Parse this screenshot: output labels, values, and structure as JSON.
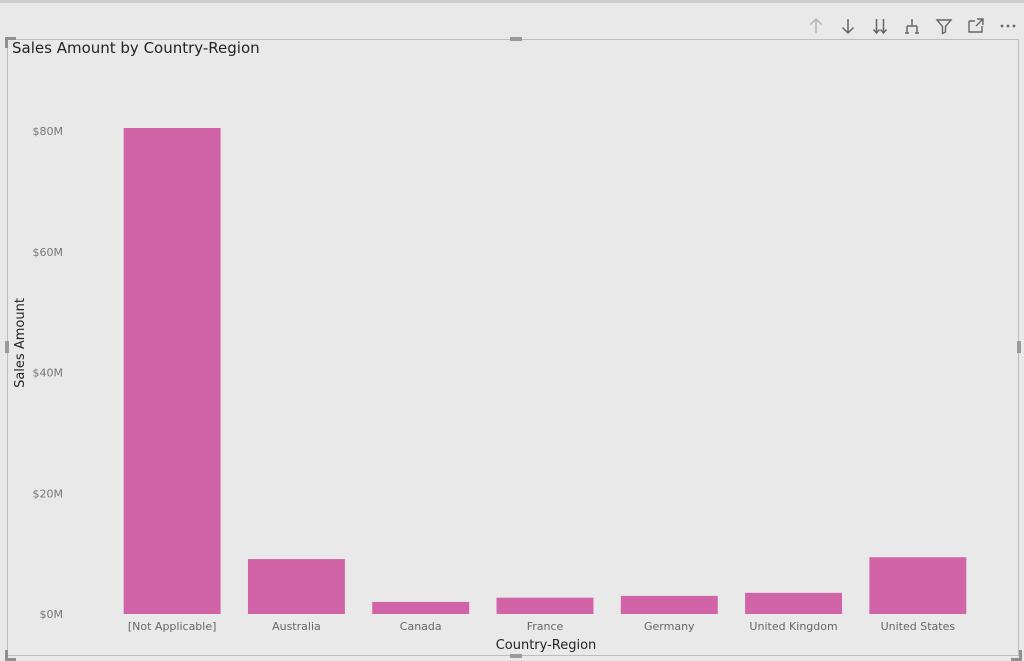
{
  "toolbar": {
    "icons": [
      "arrow-up-icon",
      "arrow-down-icon",
      "double-arrow-down-icon",
      "hierarchy-expand-icon",
      "filter-icon",
      "focus-mode-icon",
      "more-options-icon"
    ]
  },
  "colors": {
    "bar": "#d064a7",
    "background": "#e9e9e9"
  },
  "chart_data": {
    "type": "bar",
    "title": "Sales Amount by Country-Region",
    "xlabel": "Country-Region",
    "ylabel": "Sales Amount",
    "categories": [
      "[Not Applicable]",
      "Australia",
      "Canada",
      "France",
      "Germany",
      "United Kingdom",
      "United States"
    ],
    "values": [
      80.5,
      9.1,
      2.0,
      2.7,
      3.0,
      3.5,
      9.4
    ],
    "value_unit": "$M",
    "ylim": [
      0,
      80
    ],
    "yticks": [
      0,
      20,
      40,
      60,
      80
    ],
    "ytick_labels": [
      "$0M",
      "$20M",
      "$40M",
      "$60M",
      "$80M"
    ],
    "grid": false,
    "legend": "none"
  }
}
